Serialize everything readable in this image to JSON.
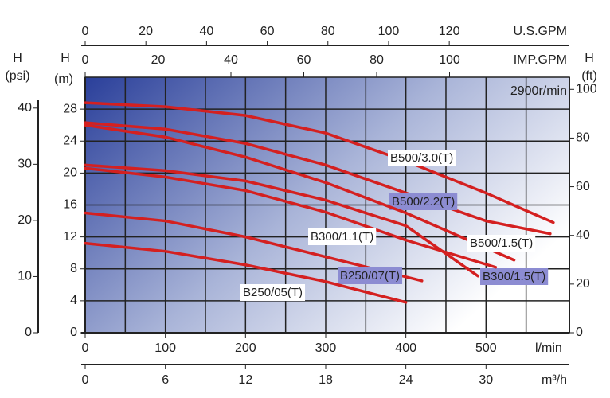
{
  "chart_data": {
    "type": "line",
    "annotation": "2900r/min",
    "x_label": "l/min",
    "xlim": [
      0,
      604
    ],
    "xticks": [
      0,
      100,
      200,
      300,
      400,
      500
    ],
    "xminor": [
      50,
      150,
      250,
      350,
      450,
      550
    ],
    "y_label": "H",
    "y_unit": "(m)",
    "ylim": [
      0,
      32
    ],
    "yticks": [
      0,
      4,
      8,
      12,
      16,
      20,
      24,
      28
    ],
    "grid": true,
    "secondary_x_axes": [
      {
        "position": "top",
        "label": "U.S.GPM",
        "xlim": [
          0,
          159.6
        ],
        "xticks": [
          0,
          20,
          40,
          60,
          80,
          100,
          120
        ]
      },
      {
        "position": "top",
        "label": "IMP.GPM",
        "xlim": [
          0,
          132.9
        ],
        "xticks": [
          0,
          20,
          40,
          60,
          80,
          100
        ]
      },
      {
        "position": "bottom",
        "label": "m³/h",
        "xlim": [
          0,
          36.24
        ],
        "xticks": [
          0,
          6,
          12,
          18,
          24,
          30
        ]
      }
    ],
    "secondary_y_axes": [
      {
        "position": "left",
        "label": "H",
        "unit": "(psi)",
        "ylim": [
          0,
          45.5
        ],
        "yticks": [
          0,
          10,
          20,
          30,
          40
        ]
      },
      {
        "position": "right",
        "label": "H",
        "unit": "(ft)",
        "ylim": [
          0,
          105
        ],
        "yticks": [
          0,
          20,
          40,
          60,
          80,
          100
        ]
      }
    ],
    "series": [
      {
        "name": "B500/3.0(T)",
        "color": "#d42020",
        "x": [
          0,
          100,
          200,
          300,
          400,
          500,
          584
        ],
        "values": [
          28.8,
          28.3,
          27.2,
          25,
          21.5,
          17.5,
          13.8
        ]
      },
      {
        "name": "B500/2.2(T)",
        "color": "#d42020",
        "x": [
          0,
          100,
          200,
          300,
          400,
          500,
          580
        ],
        "values": [
          26.3,
          25.5,
          23.7,
          21,
          17.5,
          14,
          12.4
        ]
      },
      {
        "name": "B500/1.5(T)",
        "color": "#d42020",
        "x": [
          0,
          100,
          200,
          300,
          400,
          535
        ],
        "values": [
          26,
          24.5,
          22,
          18.8,
          15,
          9.1
        ]
      },
      {
        "name": "B300/1.5(T)",
        "color": "#d42020",
        "x": [
          0,
          100,
          200,
          300,
          400,
          490
        ],
        "values": [
          21,
          20.3,
          19,
          16.6,
          13.4,
          7.1
        ]
      },
      {
        "name": "B300/1.1(T)",
        "color": "#d42020",
        "x": [
          0,
          100,
          200,
          300,
          400,
          512
        ],
        "values": [
          20.6,
          19.5,
          17.8,
          15.1,
          11.6,
          8.2
        ]
      },
      {
        "name": "B250/07(T)",
        "color": "#d42020",
        "x": [
          0,
          100,
          200,
          300,
          420
        ],
        "values": [
          15,
          14,
          12,
          9.5,
          6.5
        ]
      },
      {
        "name": "B250/05(T)",
        "color": "#d42020",
        "x": [
          0,
          100,
          200,
          300,
          400
        ],
        "values": [
          11.2,
          10.2,
          8.5,
          6.4,
          3.8
        ]
      }
    ]
  }
}
